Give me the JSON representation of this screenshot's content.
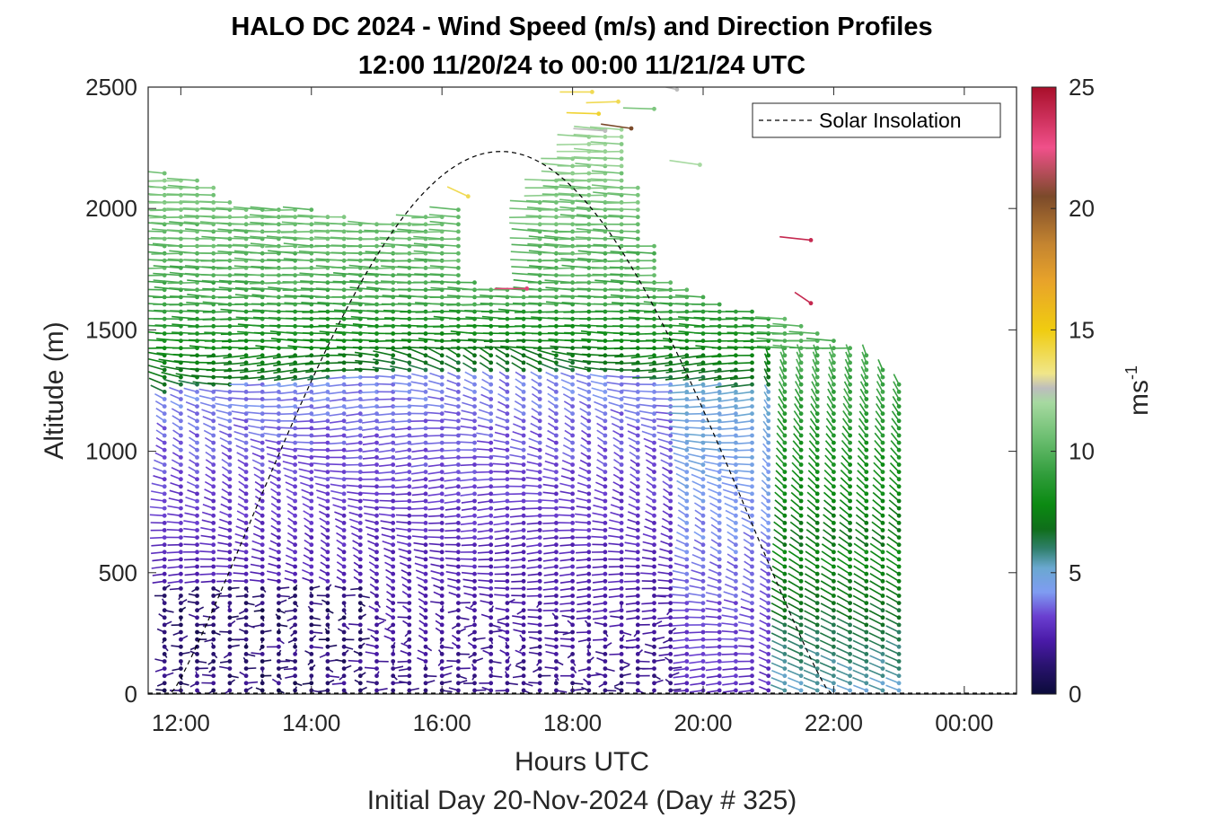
{
  "chart_data": {
    "type": "wind-barb-profile",
    "title": "HALO DC 2024 - Wind Speed (m/s) and Direction Profiles",
    "subtitle": "12:00 11/20/24 to 00:00 11/21/24  UTC",
    "xlabel": "Hours UTC",
    "x_sublabel": "Initial Day 20-Nov-2024 (Day # 325)",
    "ylabel": "Altitude (m)",
    "xlim": [
      11.5,
      24.8
    ],
    "ylim": [
      0,
      2500
    ],
    "x_ticks": [
      12,
      14,
      16,
      18,
      20,
      22,
      24
    ],
    "x_tick_labels": [
      "12:00",
      "14:00",
      "16:00",
      "18:00",
      "20:00",
      "22:00",
      "00:00"
    ],
    "y_ticks": [
      0,
      500,
      1000,
      1500,
      2000,
      2500
    ],
    "y_tick_labels": [
      "0",
      "500",
      "1000",
      "1500",
      "2000",
      "2500"
    ],
    "legend": {
      "entries": [
        "Solar Insolation"
      ],
      "position": "top-right",
      "line_style": "dashed"
    },
    "colorbar": {
      "label_base": "ms",
      "label_exp": "-1",
      "range": [
        0,
        25
      ],
      "ticks": [
        0,
        5,
        10,
        15,
        20,
        25
      ],
      "tick_labels": [
        "0",
        "5",
        "10",
        "15",
        "20",
        "25"
      ],
      "color_stops": [
        [
          0,
          "#0b0b3a"
        ],
        [
          1.2,
          "#2a1370"
        ],
        [
          2.2,
          "#4a1aa8"
        ],
        [
          3.2,
          "#6a3fd0"
        ],
        [
          4.2,
          "#7f9cf2"
        ],
        [
          5.2,
          "#6aa8d0"
        ],
        [
          6.0,
          "#2f7f6a"
        ],
        [
          6.8,
          "#0f6e1a"
        ],
        [
          7.8,
          "#0b8a12"
        ],
        [
          9.0,
          "#2f9c3a"
        ],
        [
          10.5,
          "#6abd6f"
        ],
        [
          12.0,
          "#a6d9a0"
        ],
        [
          12.6,
          "#bdbdbd"
        ],
        [
          13.2,
          "#f0e68a"
        ],
        [
          15.0,
          "#f0cc10"
        ],
        [
          17.0,
          "#e8a32a"
        ],
        [
          18.5,
          "#c58530"
        ],
        [
          20.5,
          "#7b4a2a"
        ],
        [
          22.5,
          "#f0508a"
        ],
        [
          25,
          "#a80f2a"
        ]
      ]
    },
    "solar_insolation": {
      "sunrise_hour": 11.85,
      "sunset_hour": 21.95,
      "peak_hour": 16.9,
      "peak_altitude": 2235,
      "x": [
        11.5,
        11.85,
        12.5,
        13.5,
        14.5,
        15.5,
        16.5,
        16.9,
        17.5,
        18.5,
        19.5,
        20.5,
        21.5,
        21.95,
        24.8
      ],
      "y": [
        0,
        0,
        560,
        1230,
        1710,
        2060,
        2220,
        2235,
        2200,
        1970,
        1520,
        880,
        260,
        0,
        0
      ]
    },
    "profiles": {
      "start_hour": 11.75,
      "end_hour": 23.0,
      "time_step_hours": 0.25,
      "altitude_step_m": 30,
      "top_altitudes": [
        [
          11.75,
          2150
        ],
        [
          12.5,
          2100
        ],
        [
          13.0,
          2000
        ],
        [
          14.0,
          2000
        ],
        [
          14.75,
          1950
        ],
        [
          15.5,
          1950
        ],
        [
          16.25,
          2000
        ],
        [
          16.5,
          1700
        ],
        [
          17.25,
          1680
        ],
        [
          17.5,
          2050
        ],
        [
          18.25,
          2300
        ],
        [
          18.75,
          2350
        ],
        [
          19.0,
          2100
        ],
        [
          19.25,
          1850
        ],
        [
          19.5,
          1700
        ],
        [
          20.5,
          1600
        ],
        [
          21.25,
          1550
        ],
        [
          21.75,
          1500
        ],
        [
          22.25,
          1450
        ],
        [
          22.75,
          1350
        ],
        [
          23.0,
          1300
        ]
      ],
      "speed_field": "low speeds (0–4 m/s) in the boundary layer below ~1300 m, 6–9 m/s near 1300–1600 m, 9–12 m/s aloft; weak (<2 m/s) near-surface winds before 15:00",
      "direction_field": "westerly to west-northwesterly aloft, veering and variable in the lower boundary layer"
    },
    "isolated_points": [
      {
        "hour": 16.4,
        "alt": 2050,
        "speed": 14.0,
        "dir": 220
      },
      {
        "hour": 17.3,
        "alt": 1670,
        "speed": 23.0,
        "dir": 270
      },
      {
        "hour": 18.3,
        "alt": 2480,
        "speed": 14.0,
        "dir": 270
      },
      {
        "hour": 18.4,
        "alt": 2390,
        "speed": 14.5,
        "dir": 265
      },
      {
        "hour": 18.5,
        "alt": 2320,
        "speed": 12.6,
        "dir": 260
      },
      {
        "hour": 18.7,
        "alt": 2440,
        "speed": 14.0,
        "dir": 275
      },
      {
        "hour": 18.9,
        "alt": 2330,
        "speed": 20.5,
        "dir": 250
      },
      {
        "hour": 19.25,
        "alt": 2410,
        "speed": 11.0,
        "dir": 265
      },
      {
        "hour": 19.6,
        "alt": 2490,
        "speed": 12.6,
        "dir": 240
      },
      {
        "hour": 19.95,
        "alt": 2180,
        "speed": 12.0,
        "dir": 250
      },
      {
        "hour": 21.65,
        "alt": 1870,
        "speed": 24.0,
        "dir": 255
      },
      {
        "hour": 21.65,
        "alt": 1610,
        "speed": 24.0,
        "dir": 210
      }
    ]
  }
}
